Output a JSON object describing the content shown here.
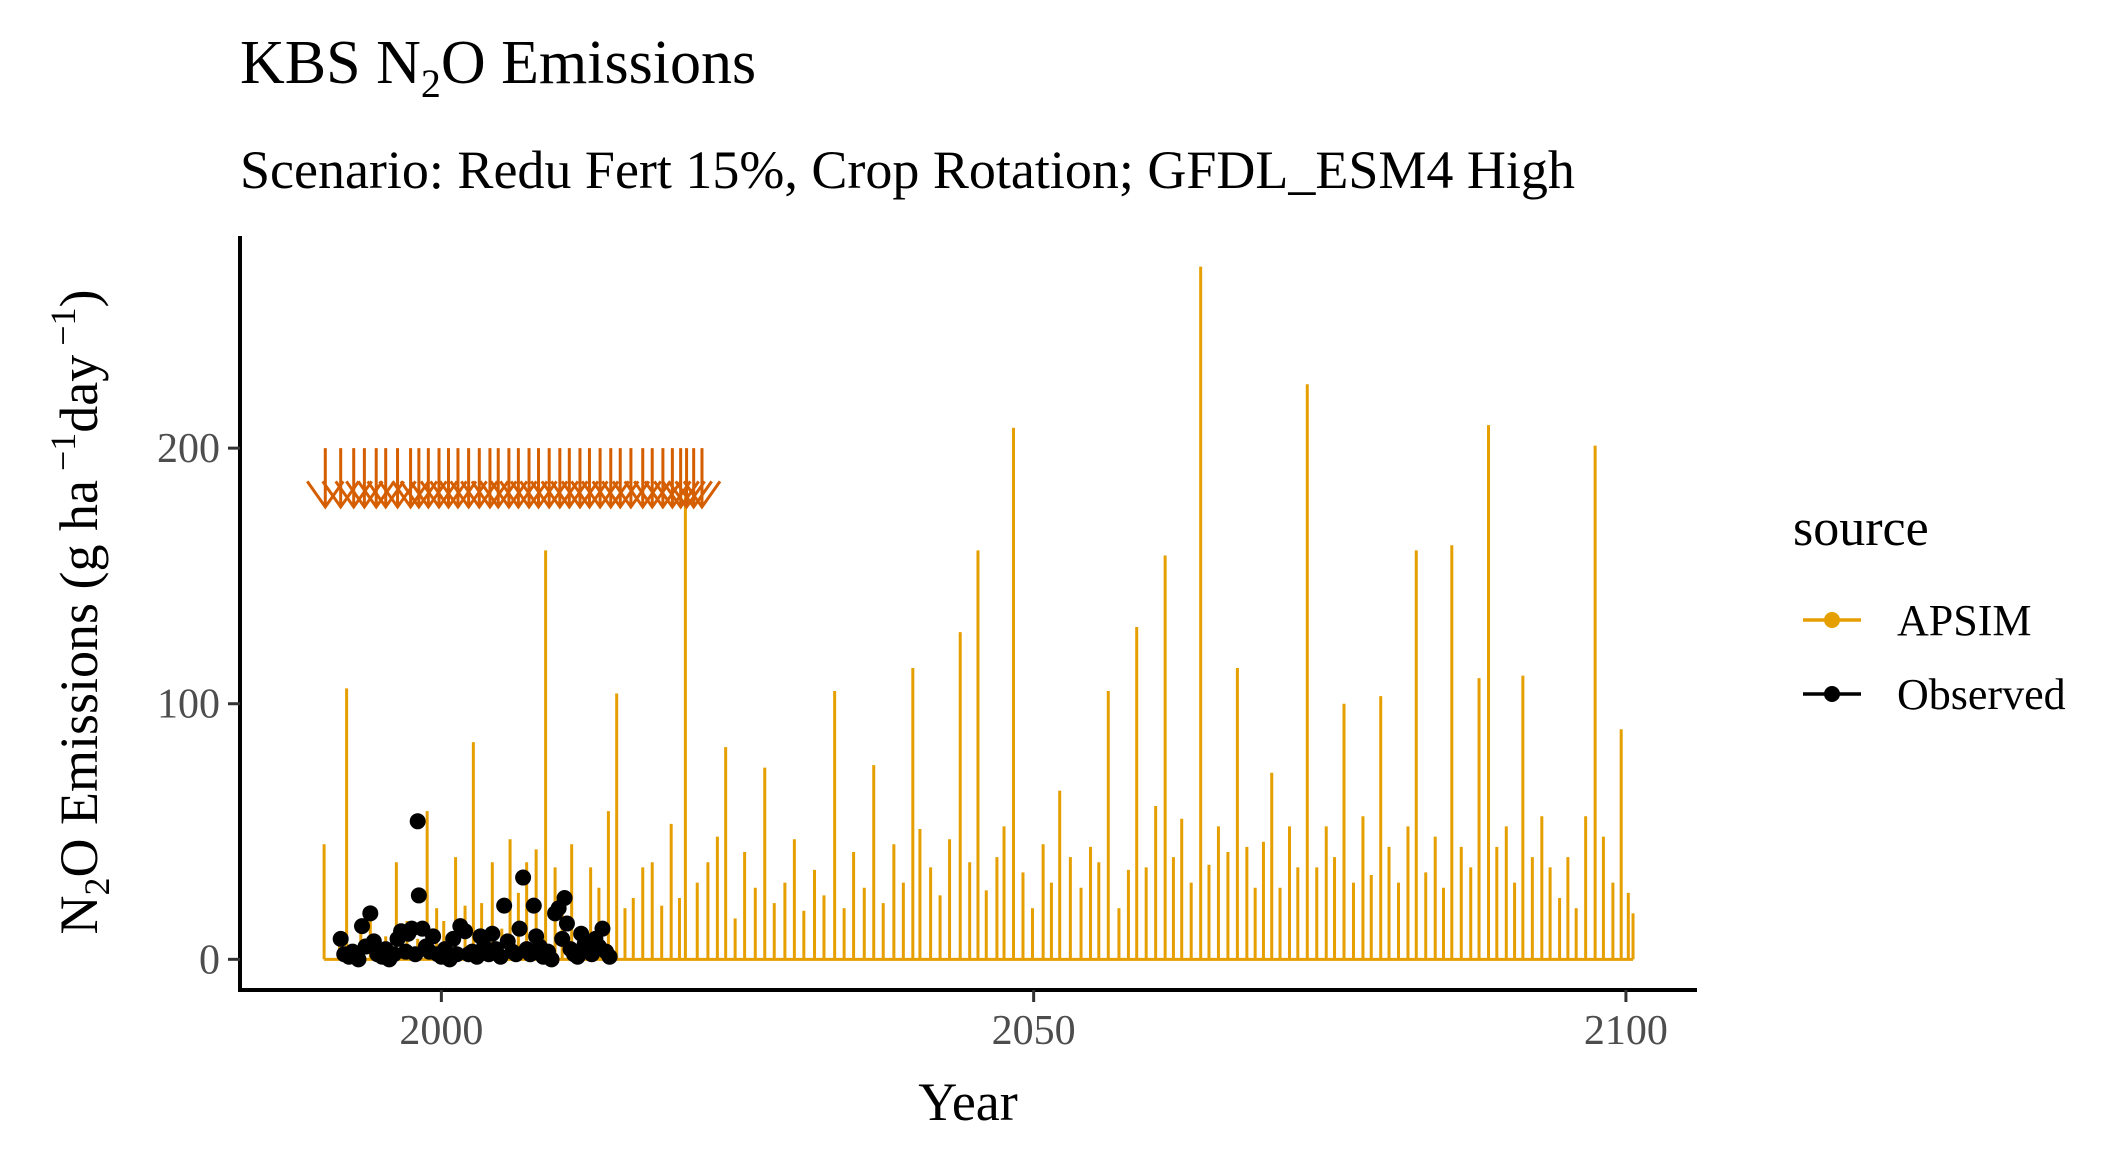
{
  "chart_data": {
    "type": "line",
    "title": {
      "pre": "KBS N",
      "sub": "2",
      "post": "O Emissions"
    },
    "subtitle": "Scenario: Redu Fert 15%, Crop Rotation; GFDL_ESM4 High",
    "xlabel": "Year",
    "ylabel": {
      "p1": "N",
      "s1": "2",
      "p2": "O Emissions (g ha",
      "e1": " −1",
      "p3": "day",
      "e2": " −1",
      "p4": ")"
    },
    "xlim": [
      1983,
      2106
    ],
    "ylim": [
      -12,
      283
    ],
    "x_ticks": [
      2000,
      2050,
      2100
    ],
    "y_ticks": [
      0,
      100,
      200
    ],
    "legend": {
      "title": "source",
      "position": "right",
      "entries": [
        {
          "label": "APSIM",
          "color": "#E69F00"
        },
        {
          "label": "Observed",
          "color": "#000000"
        }
      ]
    },
    "series": [
      {
        "name": "APSIM",
        "color": "#E69F00",
        "spikes": [
          [
            1990.1,
            45
          ],
          [
            1991.4,
            8
          ],
          [
            1992.0,
            106
          ],
          [
            1993.2,
            12
          ],
          [
            1994.0,
            18
          ],
          [
            1995.3,
            9
          ],
          [
            1996.2,
            38
          ],
          [
            1997.1,
            15
          ],
          [
            1998.0,
            8
          ],
          [
            1998.8,
            58
          ],
          [
            1999.6,
            20
          ],
          [
            2000.2,
            15
          ],
          [
            2001.2,
            40
          ],
          [
            2002.0,
            21
          ],
          [
            2002.7,
            85
          ],
          [
            2003.4,
            22
          ],
          [
            2004.3,
            38
          ],
          [
            2005.1,
            12
          ],
          [
            2005.8,
            47
          ],
          [
            2006.5,
            26
          ],
          [
            2007.2,
            38
          ],
          [
            2008.0,
            43
          ],
          [
            2008.8,
            160
          ],
          [
            2009.6,
            36
          ],
          [
            2010.2,
            18
          ],
          [
            2011.0,
            45
          ],
          [
            2011.8,
            10
          ],
          [
            2012.6,
            36
          ],
          [
            2013.3,
            28
          ],
          [
            2014.1,
            58
          ],
          [
            2014.8,
            104
          ],
          [
            2015.5,
            20
          ],
          [
            2016.2,
            24
          ],
          [
            2017.0,
            36
          ],
          [
            2017.8,
            38
          ],
          [
            2018.6,
            21
          ],
          [
            2019.4,
            53
          ],
          [
            2020.1,
            24
          ],
          [
            2020.6,
            181
          ],
          [
            2021.6,
            30
          ],
          [
            2022.5,
            38
          ],
          [
            2023.3,
            48
          ],
          [
            2024.0,
            83
          ],
          [
            2024.8,
            16
          ],
          [
            2025.6,
            42
          ],
          [
            2026.5,
            28
          ],
          [
            2027.3,
            75
          ],
          [
            2028.1,
            22
          ],
          [
            2029.0,
            30
          ],
          [
            2029.8,
            47
          ],
          [
            2030.6,
            19
          ],
          [
            2031.5,
            35
          ],
          [
            2032.3,
            25
          ],
          [
            2033.2,
            105
          ],
          [
            2034.0,
            20
          ],
          [
            2034.8,
            42
          ],
          [
            2035.7,
            28
          ],
          [
            2036.5,
            76
          ],
          [
            2037.3,
            22
          ],
          [
            2038.2,
            45
          ],
          [
            2039.0,
            30
          ],
          [
            2039.8,
            114
          ],
          [
            2040.4,
            51
          ],
          [
            2041.3,
            36
          ],
          [
            2042.1,
            25
          ],
          [
            2042.9,
            47
          ],
          [
            2043.8,
            128
          ],
          [
            2044.6,
            38
          ],
          [
            2045.3,
            160
          ],
          [
            2046.0,
            27
          ],
          [
            2046.9,
            40
          ],
          [
            2047.5,
            52
          ],
          [
            2048.3,
            208
          ],
          [
            2049.1,
            34
          ],
          [
            2049.9,
            20
          ],
          [
            2050.8,
            45
          ],
          [
            2051.5,
            30
          ],
          [
            2052.2,
            66
          ],
          [
            2053.1,
            40
          ],
          [
            2054.0,
            28
          ],
          [
            2054.8,
            44
          ],
          [
            2055.5,
            38
          ],
          [
            2056.3,
            105
          ],
          [
            2057.2,
            20
          ],
          [
            2058.0,
            35
          ],
          [
            2058.7,
            130
          ],
          [
            2059.5,
            36
          ],
          [
            2060.3,
            60
          ],
          [
            2061.1,
            158
          ],
          [
            2061.8,
            40
          ],
          [
            2062.5,
            55
          ],
          [
            2063.3,
            30
          ],
          [
            2064.1,
            271
          ],
          [
            2064.8,
            37
          ],
          [
            2065.6,
            52
          ],
          [
            2066.4,
            42
          ],
          [
            2067.2,
            114
          ],
          [
            2068.0,
            44
          ],
          [
            2068.7,
            28
          ],
          [
            2069.4,
            46
          ],
          [
            2070.1,
            73
          ],
          [
            2070.8,
            28
          ],
          [
            2071.6,
            52
          ],
          [
            2072.3,
            36
          ],
          [
            2073.1,
            225
          ],
          [
            2073.9,
            36
          ],
          [
            2074.7,
            52
          ],
          [
            2075.4,
            40
          ],
          [
            2076.2,
            100
          ],
          [
            2077.0,
            30
          ],
          [
            2077.8,
            56
          ],
          [
            2078.5,
            33
          ],
          [
            2079.3,
            103
          ],
          [
            2080.0,
            44
          ],
          [
            2080.8,
            30
          ],
          [
            2081.6,
            52
          ],
          [
            2082.3,
            160
          ],
          [
            2083.1,
            34
          ],
          [
            2083.9,
            48
          ],
          [
            2084.6,
            28
          ],
          [
            2085.3,
            162
          ],
          [
            2086.1,
            44
          ],
          [
            2086.9,
            36
          ],
          [
            2087.6,
            110
          ],
          [
            2088.4,
            209
          ],
          [
            2089.1,
            44
          ],
          [
            2089.9,
            52
          ],
          [
            2090.6,
            30
          ],
          [
            2091.3,
            111
          ],
          [
            2092.1,
            40
          ],
          [
            2092.9,
            56
          ],
          [
            2093.6,
            36
          ],
          [
            2094.4,
            24
          ],
          [
            2095.1,
            40
          ],
          [
            2095.8,
            20
          ],
          [
            2096.6,
            56
          ],
          [
            2097.4,
            201
          ],
          [
            2098.1,
            48
          ],
          [
            2098.9,
            30
          ],
          [
            2099.6,
            90
          ],
          [
            2100.2,
            26
          ],
          [
            2100.6,
            18
          ]
        ]
      },
      {
        "name": "Observed",
        "color": "#000000",
        "points": [
          [
            1991.5,
            8
          ],
          [
            1991.8,
            2
          ],
          [
            1992.2,
            1
          ],
          [
            1992.5,
            3
          ],
          [
            1993.0,
            0
          ],
          [
            1993.3,
            13
          ],
          [
            1993.6,
            5
          ],
          [
            1994.0,
            18
          ],
          [
            1994.3,
            7
          ],
          [
            1994.6,
            2
          ],
          [
            1995.0,
            1
          ],
          [
            1995.3,
            4
          ],
          [
            1995.6,
            0
          ],
          [
            1996.0,
            2
          ],
          [
            1996.3,
            8
          ],
          [
            1996.6,
            11
          ],
          [
            1997.0,
            3
          ],
          [
            1997.2,
            10
          ],
          [
            1997.5,
            12
          ],
          [
            1997.8,
            2
          ],
          [
            1998.0,
            54
          ],
          [
            1998.1,
            25
          ],
          [
            1998.4,
            12
          ],
          [
            1998.7,
            5
          ],
          [
            1999.0,
            3
          ],
          [
            1999.3,
            9
          ],
          [
            1999.7,
            2
          ],
          [
            2000.0,
            1
          ],
          [
            2000.3,
            4
          ],
          [
            2000.7,
            0
          ],
          [
            2001.0,
            8
          ],
          [
            2001.3,
            2
          ],
          [
            2001.6,
            13
          ],
          [
            2002.0,
            11
          ],
          [
            2002.3,
            2
          ],
          [
            2002.6,
            3
          ],
          [
            2003.0,
            1
          ],
          [
            2003.3,
            9
          ],
          [
            2003.6,
            5
          ],
          [
            2004.0,
            2
          ],
          [
            2004.3,
            10
          ],
          [
            2004.6,
            4
          ],
          [
            2005.0,
            1
          ],
          [
            2005.3,
            21
          ],
          [
            2005.6,
            7
          ],
          [
            2006.0,
            3
          ],
          [
            2006.3,
            2
          ],
          [
            2006.6,
            12
          ],
          [
            2006.9,
            32
          ],
          [
            2007.2,
            4
          ],
          [
            2007.5,
            2
          ],
          [
            2007.8,
            21
          ],
          [
            2008.0,
            9
          ],
          [
            2008.3,
            5
          ],
          [
            2008.6,
            1
          ],
          [
            2009.0,
            3
          ],
          [
            2009.3,
            0
          ],
          [
            2009.6,
            18
          ],
          [
            2009.9,
            20
          ],
          [
            2010.2,
            8
          ],
          [
            2010.4,
            24
          ],
          [
            2010.6,
            14
          ],
          [
            2010.9,
            4
          ],
          [
            2011.2,
            2
          ],
          [
            2011.5,
            1
          ],
          [
            2011.8,
            10
          ],
          [
            2012.1,
            6
          ],
          [
            2012.4,
            3
          ],
          [
            2012.7,
            2
          ],
          [
            2013.0,
            8
          ],
          [
            2013.3,
            5
          ],
          [
            2013.6,
            12
          ],
          [
            2013.9,
            3
          ],
          [
            2014.2,
            1
          ]
        ]
      }
    ],
    "arrow_markers": {
      "color": "#D55E00",
      "y_top": 200,
      "y_bottom": 177,
      "x": [
        1990.2,
        1991.5,
        1992.6,
        1993.5,
        1994.5,
        1995.3,
        1996.3,
        1997.4,
        1998.1,
        1998.9,
        1999.8,
        2000.6,
        2001.4,
        2002.3,
        2003.2,
        2004.1,
        2004.8,
        2005.7,
        2006.5,
        2007.4,
        2008.2,
        2009.1,
        2010.0,
        2010.8,
        2011.7,
        2012.5,
        2013.4,
        2014.3,
        2015.1,
        2016.0,
        2017.0,
        2017.8,
        2018.7,
        2019.5,
        2020.2,
        2020.7,
        2021.3,
        2022.0
      ]
    }
  }
}
